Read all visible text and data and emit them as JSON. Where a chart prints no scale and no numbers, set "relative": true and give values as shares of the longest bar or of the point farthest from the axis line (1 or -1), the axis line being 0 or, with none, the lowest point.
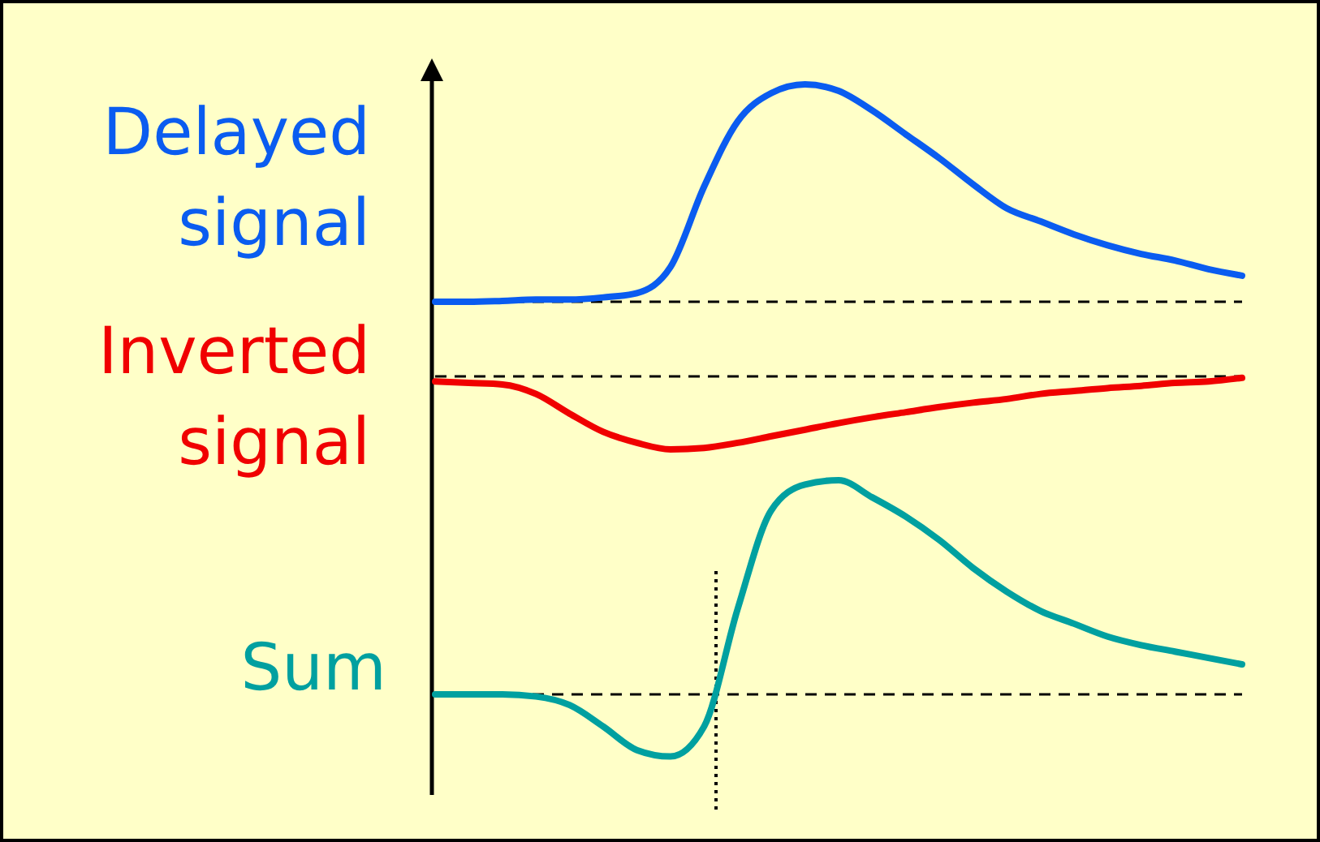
{
  "chart_data": [
    {
      "type": "line",
      "relative": true,
      "categories": [
        null,
        null,
        null,
        null,
        null,
        null,
        null,
        null,
        null,
        null,
        null,
        null,
        null,
        null,
        null,
        null,
        null,
        null,
        null,
        null,
        null,
        null,
        null,
        null,
        null
      ],
      "series": [
        {
          "name": "Delayed signal",
          "color": "#0a5cf0",
          "values": [
            0,
            0,
            0.004,
            0.01,
            0.01,
            0.02,
            0.04,
            0.16,
            0.53,
            0.83,
            0.96,
            1,
            0.97,
            0.88,
            0.77,
            0.66,
            0.54,
            0.43,
            0.37,
            0.31,
            0.26,
            0.22,
            0.19,
            0.15,
            0.12
          ]
        }
      ],
      "ref_lines": [
        {
          "axis": "y",
          "value": 0,
          "line_style": "dashed"
        }
      ]
    },
    {
      "type": "line",
      "relative": true,
      "categories": [
        null,
        null,
        null,
        null,
        null,
        null,
        null,
        null,
        null,
        null,
        null,
        null,
        null,
        null,
        null,
        null,
        null,
        null,
        null,
        null,
        null,
        null,
        null,
        null,
        null
      ],
      "series": [
        {
          "name": "Inverted signal",
          "color": "#f00000",
          "values": [
            -0.07,
            -0.09,
            -0.11,
            -0.24,
            -0.51,
            -0.76,
            -0.91,
            -1,
            -0.98,
            -0.91,
            -0.82,
            -0.73,
            -0.64,
            -0.56,
            -0.49,
            -0.42,
            -0.36,
            -0.31,
            -0.24,
            -0.2,
            -0.16,
            -0.13,
            -0.09,
            -0.07,
            -0.02
          ]
        }
      ],
      "ref_lines": [
        {
          "axis": "y",
          "value": 0,
          "line_style": "dashed"
        }
      ]
    },
    {
      "type": "line",
      "relative": true,
      "categories": [
        null,
        null,
        null,
        null,
        null,
        null,
        null,
        null,
        null,
        null,
        null,
        null,
        null,
        null,
        null,
        null,
        null,
        null,
        null,
        null,
        null,
        null,
        null,
        null,
        null
      ],
      "series": [
        {
          "name": "Sum",
          "color": "#00a0a0",
          "values": [
            0,
            0,
            0,
            -0.01,
            -0.05,
            -0.15,
            -0.26,
            -0.29,
            -0.15,
            0.4,
            0.86,
            0.98,
            1,
            0.92,
            0.83,
            0.72,
            0.59,
            0.48,
            0.39,
            0.33,
            0.27,
            0.23,
            0.2,
            0.17,
            0.14
          ]
        }
      ],
      "ref_lines": [
        {
          "axis": "y",
          "value": 0,
          "line_style": "dashed"
        }
      ]
    }
  ]
}
